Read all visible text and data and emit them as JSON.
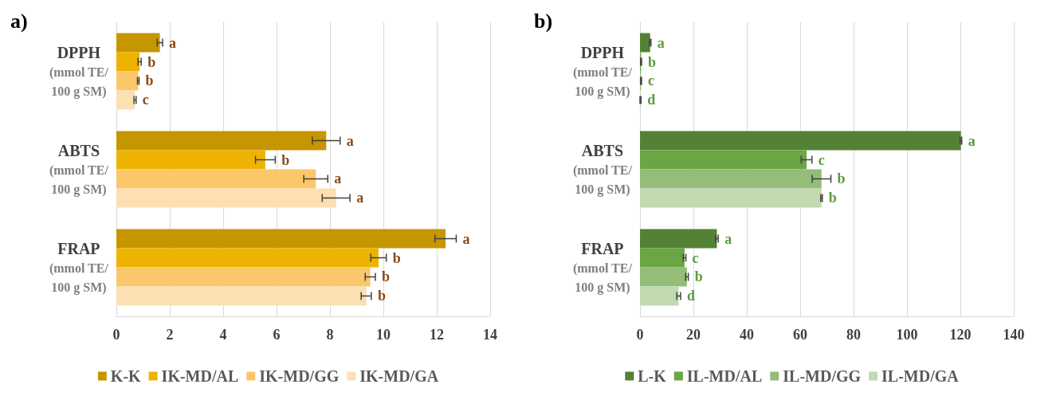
{
  "chart_data": [
    {
      "type": "bar",
      "title": "a)",
      "orientation": "horizontal",
      "categories": [
        "DPPH\n(mmol TE/\n100 g SM)",
        "ABTS\n(mmol TE/\n100 g SM)",
        "FRAP\n(mmol TE/\n100 g SM)"
      ],
      "xlim": [
        0,
        14
      ],
      "xticks": [
        0,
        2,
        4,
        6,
        8,
        10,
        12,
        14
      ],
      "grid": "x",
      "legend": "bottom",
      "series": [
        {
          "name": "K-K",
          "color": "#c59600",
          "values": [
            1.63,
            7.86,
            12.33
          ],
          "errors": [
            0.1,
            0.52,
            0.4
          ],
          "value_labels": [
            "a",
            "a",
            "a"
          ]
        },
        {
          "name": "IK-MD/AL",
          "color": "#eeb300",
          "values": [
            0.87,
            5.58,
            9.82
          ],
          "errors": [
            0.06,
            0.37,
            0.29
          ],
          "value_labels": [
            "b",
            "b",
            "b"
          ]
        },
        {
          "name": "IK-MD/GG",
          "color": "#fbc76b",
          "values": [
            0.82,
            7.47,
            9.51
          ],
          "errors": [
            0.03,
            0.45,
            0.19
          ],
          "value_labels": [
            "b",
            "a",
            "b"
          ]
        },
        {
          "name": "IK-MD/GA",
          "color": "#fde0b2",
          "values": [
            0.7,
            8.23,
            9.36
          ],
          "errors": [
            0.04,
            0.52,
            0.19
          ],
          "value_labels": [
            "c",
            "a",
            "b"
          ]
        }
      ]
    },
    {
      "type": "bar",
      "title": "b)",
      "orientation": "horizontal",
      "categories": [
        "DPPH\n(mmol TE/\n100 g SM)",
        "ABTS\n(mmol TE/\n100 g SM)",
        "FRAP\n(mmol TE/\n100 g SM)"
      ],
      "xlim": [
        0,
        140
      ],
      "xticks": [
        0,
        20,
        40,
        60,
        80,
        100,
        120,
        140
      ],
      "grid": "x",
      "legend": "bottom",
      "series": [
        {
          "name": "L-K",
          "color": "#548235",
          "values": [
            3.8,
            120.2,
            28.8
          ],
          "errors": [
            0.3,
            0.3,
            0.5
          ],
          "value_labels": [
            "a",
            "a",
            "a"
          ]
        },
        {
          "name": "IL-MD/AL",
          "color": "#6aa644",
          "values": [
            0.4,
            62.4,
            16.7
          ],
          "errors": [
            0.2,
            2,
            0.5
          ],
          "value_labels": [
            "b",
            "c",
            "c"
          ]
        },
        {
          "name": "IL-MD/GG",
          "color": "#93bd78",
          "values": [
            0.4,
            68,
            17.6
          ],
          "errors": [
            0.2,
            3.5,
            0.5
          ],
          "value_labels": [
            "c",
            "b",
            "b"
          ]
        },
        {
          "name": "IL-MD/GA",
          "color": "#c0d9b0",
          "values": [
            0.2,
            68,
            14.5
          ],
          "errors": [
            0.2,
            0.3,
            0.7
          ],
          "value_labels": [
            "d",
            "b",
            "d"
          ]
        }
      ]
    }
  ]
}
